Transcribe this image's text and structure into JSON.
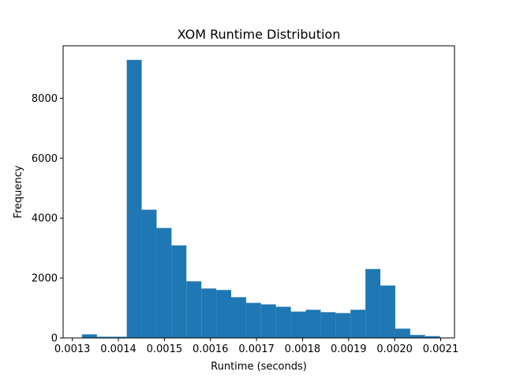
{
  "chart_data": {
    "type": "bar",
    "title": "XOM Runtime Distribution",
    "xlabel": "Runtime (seconds)",
    "ylabel": "Frequency",
    "xlim": [
      0.00128,
      0.00213
    ],
    "ylim": [
      0,
      9750
    ],
    "x_ticks": [
      0.0013,
      0.0014,
      0.0015,
      0.0016,
      0.0017,
      0.0018,
      0.0019,
      0.002,
      0.0021
    ],
    "x_tick_labels": [
      "0.0013",
      "0.0014",
      "0.0015",
      "0.0016",
      "0.0017",
      "0.0018",
      "0.0019",
      "0.0020",
      "0.0021"
    ],
    "y_ticks": [
      0,
      2000,
      4000,
      6000,
      8000
    ],
    "y_tick_labels": [
      "0",
      "2000",
      "4000",
      "6000",
      "8000"
    ],
    "grid": false,
    "bar_color": "#1f77b4",
    "bin_edges": [
      0.001321,
      0.0013534,
      0.0013858,
      0.0014182,
      0.0014506,
      0.001483,
      0.0015154,
      0.0015478,
      0.0015802,
      0.0016126,
      0.001645,
      0.0016774,
      0.0017098,
      0.0017422,
      0.0017746,
      0.001807,
      0.0018394,
      0.0018718,
      0.0019042,
      0.0019366,
      0.001969,
      0.0020014,
      0.0020338,
      0.0020662,
      0.0020986
    ],
    "values": [
      120,
      40,
      40,
      9280,
      4280,
      3670,
      3090,
      1890,
      1650,
      1600,
      1360,
      1170,
      1120,
      1040,
      880,
      940,
      860,
      830,
      940,
      2300,
      1750,
      310,
      100,
      60,
      50
    ]
  }
}
